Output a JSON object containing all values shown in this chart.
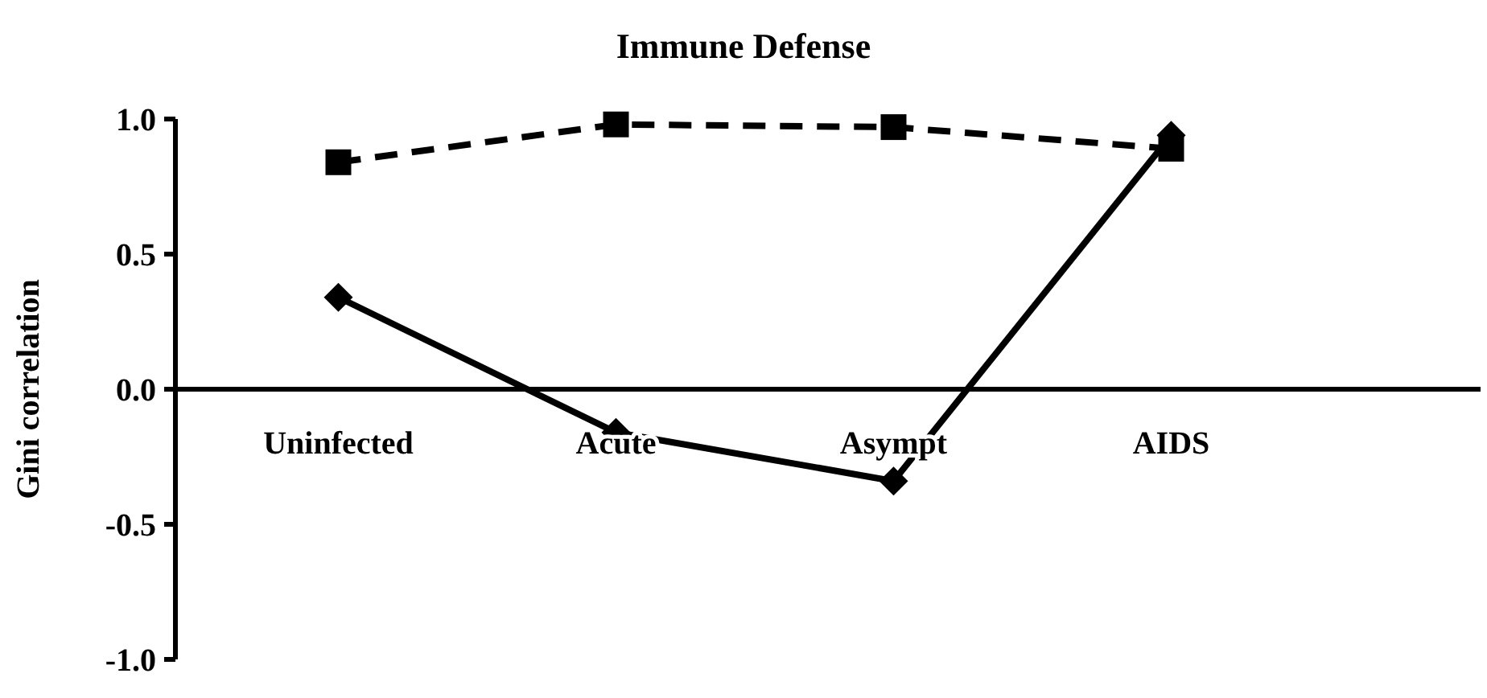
{
  "chart_data": {
    "type": "line",
    "title": "Immune Defense",
    "ylabel": "Gini correlation",
    "categories": [
      "Uninfected",
      "Acute",
      "Asympt",
      "AIDS"
    ],
    "series": [
      {
        "color": "#000000",
        "values": [
          0.84,
          0.98,
          0.97,
          0.89
        ],
        "marker": "square",
        "line_style": "dashed"
      },
      {
        "color": "#000000",
        "values": [
          0.34,
          -0.16,
          -0.34,
          0.94
        ],
        "marker": "diamond",
        "line_style": "solid"
      }
    ],
    "ylim": [
      -1,
      1
    ],
    "yticks": [
      {
        "value": -1,
        "label": "-1.0"
      },
      {
        "value": -0.5,
        "label": "-0.5"
      },
      {
        "value": 0,
        "label": "0.0"
      },
      {
        "value": 0.5,
        "label": "0.5"
      },
      {
        "value": 1,
        "label": "1.0"
      }
    ],
    "grid": false
  }
}
